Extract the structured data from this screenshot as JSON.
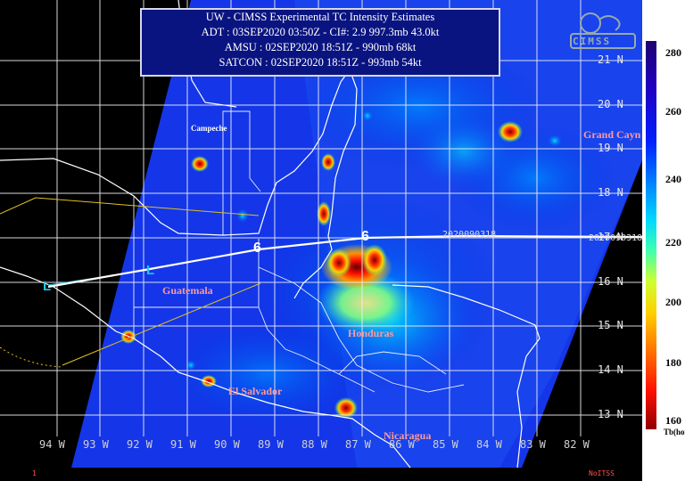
{
  "info_box": {
    "title": "UW - CIMSS Experimental TC Intensity Estimates",
    "adt": "ADT : 03SEP2020 03:50Z  -  CI#: 2.9   997.3mb   43.0kt",
    "amsu": "AMSU : 02SEP2020 18:51Z  -   990mb   68kt",
    "satcon": "SATCON : 02SEP2020 18:51Z  -   993mb   54kt"
  },
  "logo": {
    "text": "CIMSS",
    "icon": "cimss-logo-icon"
  },
  "colorbar": {
    "ticks": [
      "280",
      "260",
      "240",
      "220",
      "200",
      "180",
      "160"
    ],
    "unit": "Tb(horz)",
    "colors": {
      "cold": "#900000",
      "warm": "#200070"
    }
  },
  "lat_labels": [
    "21 N",
    "20 N",
    "19 N",
    "18 N",
    "17 N",
    "16 N",
    "15 N",
    "14 N",
    "13 N"
  ],
  "lon_labels": [
    "94 W",
    "93 W",
    "92 W",
    "91 W",
    "90 W",
    "89 W",
    "88 W",
    "87 W",
    "86 W",
    "85 W",
    "84 W",
    "83 W",
    "82 W"
  ],
  "places": {
    "grand_cayman": "Grand Cayn",
    "campeche": "Campeche",
    "guatemala": "Guatemala",
    "honduras": "Honduras",
    "el_salvador": "El Salvador",
    "nicaragua": "Nicaragua"
  },
  "pass_labels": [
    "2020090318",
    "2020090318"
  ],
  "track": {
    "storm_symbol": "6",
    "cone_symbol": "L",
    "line_color": "#ffffff",
    "cone_color_a": "#e0c020",
    "cone_color_b": "#20c8e0"
  },
  "footer": {
    "left_mark": "1",
    "right_mark": "NoITSS"
  }
}
